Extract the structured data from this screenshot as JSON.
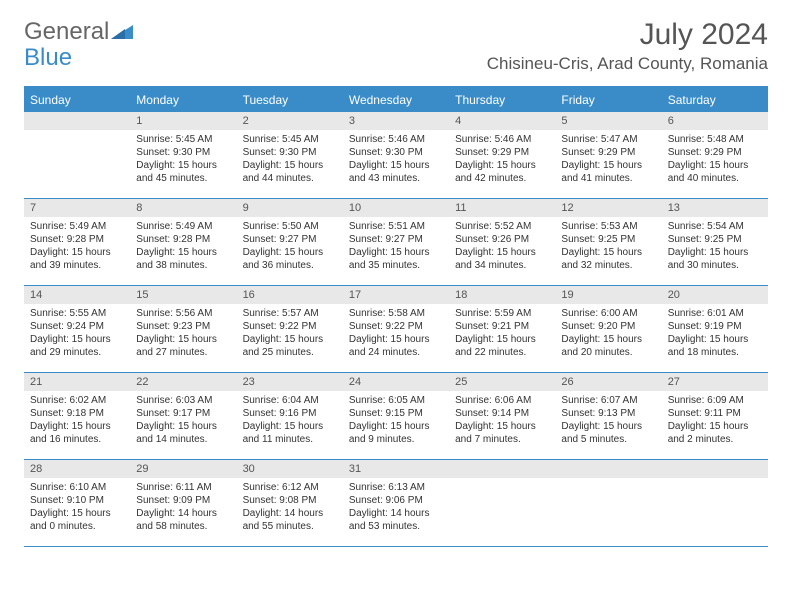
{
  "logo": {
    "text1": "General",
    "text2": "Blue"
  },
  "title": "July 2024",
  "location": "Chisineu-Cris, Arad County, Romania",
  "colors": {
    "header_bar": "#3a8cc8",
    "header_text": "#ffffff",
    "daynum_bg": "#e8e8e8",
    "text": "#333333",
    "title_text": "#555555"
  },
  "weekdays": [
    "Sunday",
    "Monday",
    "Tuesday",
    "Wednesday",
    "Thursday",
    "Friday",
    "Saturday"
  ],
  "weeks": [
    [
      null,
      {
        "n": "1",
        "sr": "5:45 AM",
        "ss": "9:30 PM",
        "dl": "15 hours and 45 minutes."
      },
      {
        "n": "2",
        "sr": "5:45 AM",
        "ss": "9:30 PM",
        "dl": "15 hours and 44 minutes."
      },
      {
        "n": "3",
        "sr": "5:46 AM",
        "ss": "9:30 PM",
        "dl": "15 hours and 43 minutes."
      },
      {
        "n": "4",
        "sr": "5:46 AM",
        "ss": "9:29 PM",
        "dl": "15 hours and 42 minutes."
      },
      {
        "n": "5",
        "sr": "5:47 AM",
        "ss": "9:29 PM",
        "dl": "15 hours and 41 minutes."
      },
      {
        "n": "6",
        "sr": "5:48 AM",
        "ss": "9:29 PM",
        "dl": "15 hours and 40 minutes."
      }
    ],
    [
      {
        "n": "7",
        "sr": "5:49 AM",
        "ss": "9:28 PM",
        "dl": "15 hours and 39 minutes."
      },
      {
        "n": "8",
        "sr": "5:49 AM",
        "ss": "9:28 PM",
        "dl": "15 hours and 38 minutes."
      },
      {
        "n": "9",
        "sr": "5:50 AM",
        "ss": "9:27 PM",
        "dl": "15 hours and 36 minutes."
      },
      {
        "n": "10",
        "sr": "5:51 AM",
        "ss": "9:27 PM",
        "dl": "15 hours and 35 minutes."
      },
      {
        "n": "11",
        "sr": "5:52 AM",
        "ss": "9:26 PM",
        "dl": "15 hours and 34 minutes."
      },
      {
        "n": "12",
        "sr": "5:53 AM",
        "ss": "9:25 PM",
        "dl": "15 hours and 32 minutes."
      },
      {
        "n": "13",
        "sr": "5:54 AM",
        "ss": "9:25 PM",
        "dl": "15 hours and 30 minutes."
      }
    ],
    [
      {
        "n": "14",
        "sr": "5:55 AM",
        "ss": "9:24 PM",
        "dl": "15 hours and 29 minutes."
      },
      {
        "n": "15",
        "sr": "5:56 AM",
        "ss": "9:23 PM",
        "dl": "15 hours and 27 minutes."
      },
      {
        "n": "16",
        "sr": "5:57 AM",
        "ss": "9:22 PM",
        "dl": "15 hours and 25 minutes."
      },
      {
        "n": "17",
        "sr": "5:58 AM",
        "ss": "9:22 PM",
        "dl": "15 hours and 24 minutes."
      },
      {
        "n": "18",
        "sr": "5:59 AM",
        "ss": "9:21 PM",
        "dl": "15 hours and 22 minutes."
      },
      {
        "n": "19",
        "sr": "6:00 AM",
        "ss": "9:20 PM",
        "dl": "15 hours and 20 minutes."
      },
      {
        "n": "20",
        "sr": "6:01 AM",
        "ss": "9:19 PM",
        "dl": "15 hours and 18 minutes."
      }
    ],
    [
      {
        "n": "21",
        "sr": "6:02 AM",
        "ss": "9:18 PM",
        "dl": "15 hours and 16 minutes."
      },
      {
        "n": "22",
        "sr": "6:03 AM",
        "ss": "9:17 PM",
        "dl": "15 hours and 14 minutes."
      },
      {
        "n": "23",
        "sr": "6:04 AM",
        "ss": "9:16 PM",
        "dl": "15 hours and 11 minutes."
      },
      {
        "n": "24",
        "sr": "6:05 AM",
        "ss": "9:15 PM",
        "dl": "15 hours and 9 minutes."
      },
      {
        "n": "25",
        "sr": "6:06 AM",
        "ss": "9:14 PM",
        "dl": "15 hours and 7 minutes."
      },
      {
        "n": "26",
        "sr": "6:07 AM",
        "ss": "9:13 PM",
        "dl": "15 hours and 5 minutes."
      },
      {
        "n": "27",
        "sr": "6:09 AM",
        "ss": "9:11 PM",
        "dl": "15 hours and 2 minutes."
      }
    ],
    [
      {
        "n": "28",
        "sr": "6:10 AM",
        "ss": "9:10 PM",
        "dl": "15 hours and 0 minutes."
      },
      {
        "n": "29",
        "sr": "6:11 AM",
        "ss": "9:09 PM",
        "dl": "14 hours and 58 minutes."
      },
      {
        "n": "30",
        "sr": "6:12 AM",
        "ss": "9:08 PM",
        "dl": "14 hours and 55 minutes."
      },
      {
        "n": "31",
        "sr": "6:13 AM",
        "ss": "9:06 PM",
        "dl": "14 hours and 53 minutes."
      },
      null,
      null,
      null
    ]
  ],
  "labels": {
    "sunrise": "Sunrise:",
    "sunset": "Sunset:",
    "daylight": "Daylight:"
  }
}
